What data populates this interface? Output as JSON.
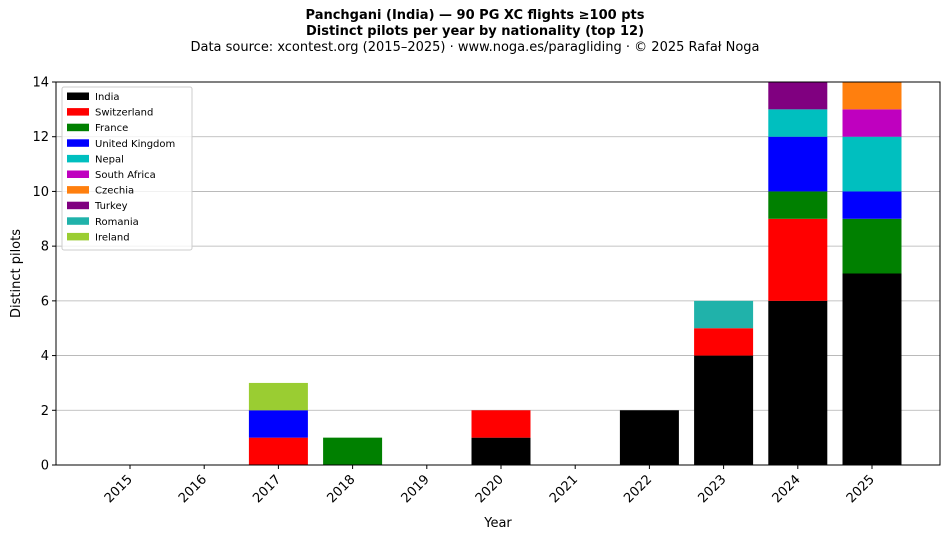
{
  "chart_data": {
    "type": "bar",
    "stacked": true,
    "title": "Panchgani (India)  —  90 PG XC flights ≥100 pts",
    "subtitle": "Distinct pilots per year by nationality (top 12)",
    "source": "Data source: xcontest.org (2015–2025)  ·  www.noga.es/paragliding  ·  © 2025 Rafał Noga",
    "xlabel": "Year",
    "ylabel": "Distinct pilots",
    "ylim": [
      0,
      14
    ],
    "yticks": [
      "0",
      "2",
      "4",
      "6",
      "8",
      "10",
      "12",
      "14"
    ],
    "grid": "y",
    "legend_position": "top-left",
    "categories": [
      "2015",
      "2016",
      "2017",
      "2018",
      "2019",
      "2020",
      "2021",
      "2022",
      "2023",
      "2024",
      "2025"
    ],
    "series": [
      {
        "name": "India",
        "color": "#000000",
        "values": [
          0,
          0,
          0,
          0,
          0,
          1,
          0,
          2,
          4,
          6,
          7
        ]
      },
      {
        "name": "Switzerland",
        "color": "#ff0000",
        "values": [
          0,
          0,
          1,
          0,
          0,
          1,
          0,
          0,
          1,
          3,
          0
        ]
      },
      {
        "name": "France",
        "color": "#008000",
        "values": [
          0,
          0,
          0,
          1,
          0,
          0,
          0,
          0,
          0,
          1,
          2
        ]
      },
      {
        "name": "United Kingdom",
        "color": "#0000ff",
        "values": [
          0,
          0,
          1,
          0,
          0,
          0,
          0,
          0,
          0,
          2,
          1
        ]
      },
      {
        "name": "Nepal",
        "color": "#00bfbf",
        "values": [
          0,
          0,
          0,
          0,
          0,
          0,
          0,
          0,
          0,
          1,
          2
        ]
      },
      {
        "name": "South Africa",
        "color": "#bf00bf",
        "values": [
          0,
          0,
          0,
          0,
          0,
          0,
          0,
          0,
          0,
          0,
          1
        ]
      },
      {
        "name": "Czechia",
        "color": "#ff7f0e",
        "values": [
          0,
          0,
          0,
          0,
          0,
          0,
          0,
          0,
          0,
          0,
          1
        ]
      },
      {
        "name": "Turkey",
        "color": "#800080",
        "values": [
          0,
          0,
          0,
          0,
          0,
          0,
          0,
          0,
          0,
          1,
          0
        ]
      },
      {
        "name": "Romania",
        "color": "#20b2aa",
        "values": [
          0,
          0,
          0,
          0,
          0,
          0,
          0,
          0,
          1,
          0,
          0
        ]
      },
      {
        "name": "Ireland",
        "color": "#9acd32",
        "values": [
          0,
          0,
          1,
          0,
          0,
          0,
          0,
          0,
          0,
          0,
          0
        ]
      }
    ]
  }
}
